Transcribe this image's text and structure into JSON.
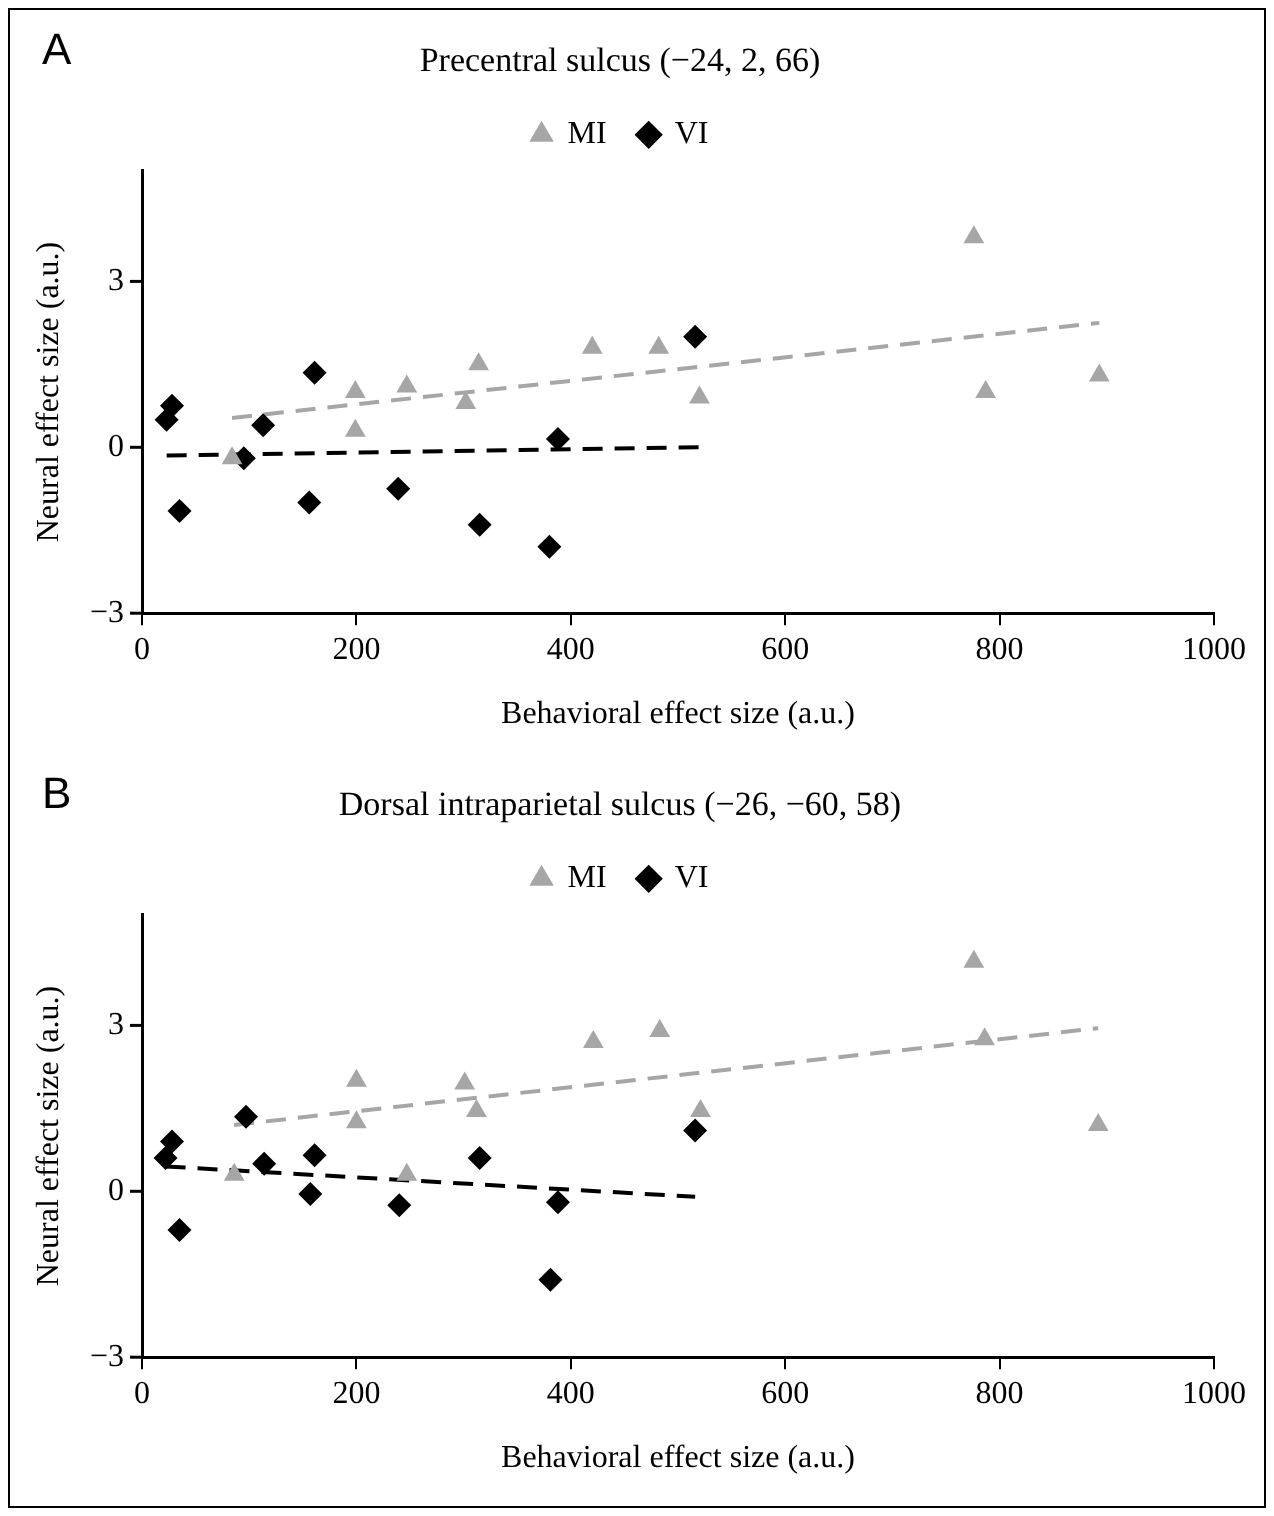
{
  "chart_data": [
    {
      "type": "scatter",
      "title": "Precentral sulcus (−24, 2, 66)",
      "xlabel": "Behavioral effect size (a.u.)",
      "ylabel": "Neural effect size (a.u.)",
      "annotations": [
        "A"
      ],
      "xlim": [
        0,
        1000
      ],
      "xticks": [
        0,
        200,
        400,
        600,
        800,
        1000
      ],
      "ylim": [
        -3,
        5
      ],
      "yticks": [
        -3,
        0,
        3
      ],
      "grid": false,
      "legend": "top",
      "series": [
        {
          "name": "MI",
          "color": "#a6a6a6",
          "marker": "triangle",
          "x": [
            84,
            199,
            199,
            247,
            302,
            314,
            420,
            482,
            520,
            776,
            787,
            893
          ],
          "values": [
            -0.2,
            1.0,
            0.3,
            1.1,
            0.8,
            1.5,
            1.8,
            1.8,
            0.9,
            3.8,
            1.0,
            1.3
          ]
        },
        {
          "name": "VI",
          "color": "#000000",
          "marker": "diamond",
          "x": [
            23,
            28,
            35,
            95,
            113,
            161,
            156,
            239,
            315,
            380,
            388,
            516
          ],
          "values": [
            0.5,
            0.75,
            -1.15,
            -0.2,
            0.4,
            1.35,
            -1.0,
            -0.75,
            -1.4,
            -1.8,
            0.15,
            2.0
          ]
        },
        {
          "type": "line",
          "color": "#a6a6a6",
          "line_style": "dashed",
          "x": [
            84,
            893
          ],
          "values": [
            0.53,
            2.25
          ]
        },
        {
          "type": "line",
          "color": "#000000",
          "line_style": "dashed",
          "x": [
            23,
            520
          ],
          "values": [
            -0.15,
            0
          ]
        }
      ]
    },
    {
      "type": "scatter",
      "title": "Dorsal intraparietal sulcus (−26, −60, 58)",
      "xlabel": "Behavioral effect size (a.u.)",
      "ylabel": "Neural effect size (a.u.)",
      "annotations": [
        "B"
      ],
      "xlim": [
        0,
        1000
      ],
      "xticks": [
        0,
        200,
        400,
        600,
        800,
        1000
      ],
      "ylim": [
        -3,
        5
      ],
      "yticks": [
        -3,
        0,
        3
      ],
      "grid": false,
      "legend": "top",
      "series": [
        {
          "name": "MI",
          "color": "#a6a6a6",
          "marker": "triangle",
          "x": [
            86,
            200,
            200,
            247,
            301,
            312,
            421,
            483,
            521,
            776,
            786,
            892
          ],
          "values": [
            0.3,
            2.0,
            1.25,
            0.3,
            1.95,
            1.45,
            2.7,
            2.9,
            1.45,
            4.15,
            2.75,
            1.2
          ]
        },
        {
          "name": "VI",
          "color": "#000000",
          "marker": "diamond",
          "x": [
            22,
            28,
            35,
            97,
            114,
            161,
            157,
            240,
            315,
            388,
            381,
            516
          ],
          "values": [
            0.6,
            0.9,
            -0.7,
            1.35,
            0.5,
            0.65,
            -0.05,
            -0.25,
            0.6,
            -0.2,
            -1.6,
            1.1
          ]
        },
        {
          "type": "line",
          "color": "#a6a6a6",
          "line_style": "dashed",
          "x": [
            86,
            892
          ],
          "values": [
            1.2,
            2.95
          ]
        },
        {
          "type": "line",
          "color": "#000000",
          "line_style": "dashed",
          "x": [
            22,
            516
          ],
          "values": [
            0.45,
            -0.1
          ]
        }
      ]
    }
  ]
}
